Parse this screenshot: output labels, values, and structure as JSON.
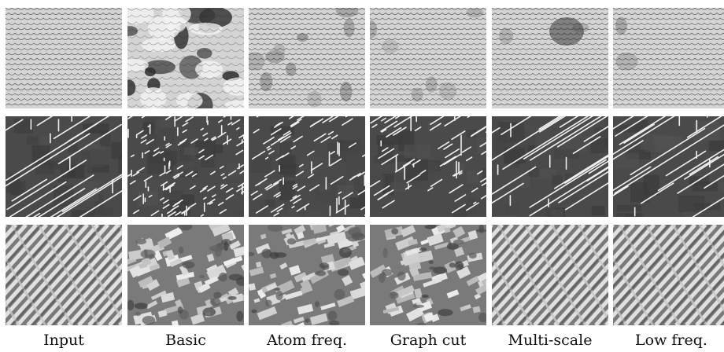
{
  "figure": {
    "columns": [
      {
        "label": "Input"
      },
      {
        "label": "Basic"
      },
      {
        "label": "Atom freq."
      },
      {
        "label": "Graph cut"
      },
      {
        "label": "Multi-scale"
      },
      {
        "label": "Low freq."
      }
    ],
    "rows": [
      {
        "texture": "scales",
        "base_color": "#d4d4d4"
      },
      {
        "texture": "lines",
        "base_color": "#4a4a4a"
      },
      {
        "texture": "weave",
        "base_color": "#7a7a7a"
      }
    ]
  }
}
